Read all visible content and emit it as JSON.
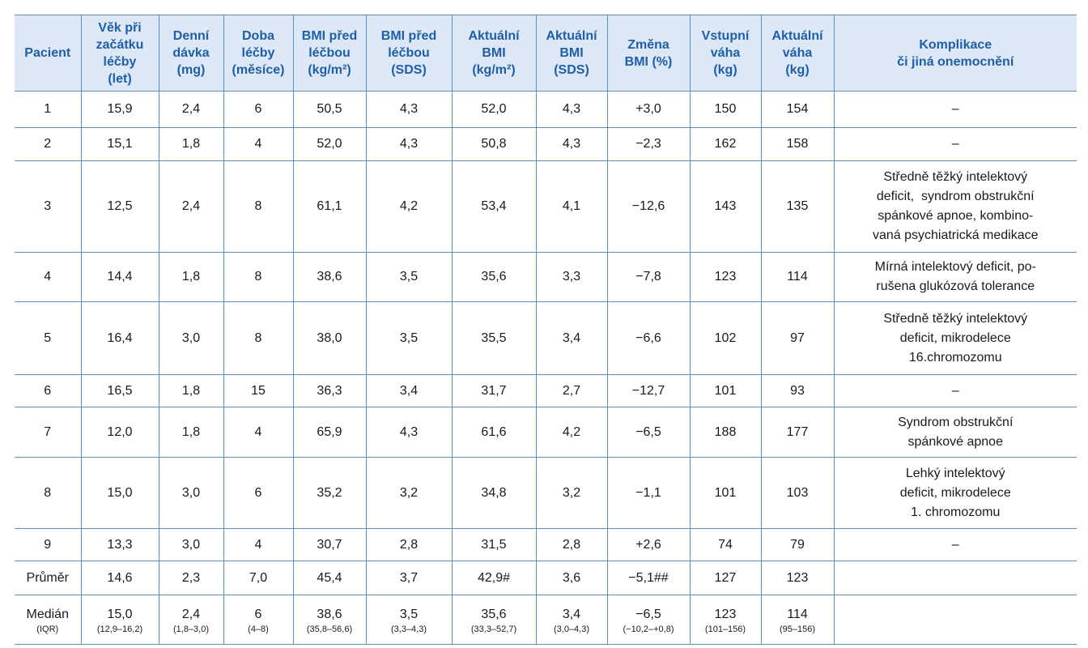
{
  "table": {
    "header": [
      [
        "Pacient"
      ],
      [
        "Věk při",
        "začátku",
        "léčby",
        "(let)"
      ],
      [
        "Denní",
        "dávka",
        "(mg)"
      ],
      [
        "Doba",
        "léčby",
        "(měsíce)"
      ],
      [
        "BMI před",
        "léčbou",
        "(kg/m²)"
      ],
      [
        "BMI před",
        "léčbou",
        "(SDS)"
      ],
      [
        "Aktuální",
        "BMI",
        "(kg/m²)"
      ],
      [
        "Aktuální",
        "BMI",
        "(SDS)"
      ],
      [
        "Změna",
        "BMI (%)"
      ],
      [
        "Vstupní",
        "váha",
        "(kg)"
      ],
      [
        "Aktuální",
        "váha",
        "(kg)"
      ],
      [
        "Komplikace",
        "či jiná onemocnění"
      ]
    ],
    "rows": [
      [
        [
          "1"
        ],
        [
          "15,9"
        ],
        [
          "2,4"
        ],
        [
          "6"
        ],
        [
          "50,5"
        ],
        [
          "4,3"
        ],
        [
          "52,0"
        ],
        [
          "4,3"
        ],
        [
          "+3,0"
        ],
        [
          "150"
        ],
        [
          "154"
        ],
        [
          "–"
        ]
      ],
      [
        [
          "2"
        ],
        [
          "15,1"
        ],
        [
          "1,8"
        ],
        [
          "4"
        ],
        [
          "52,0"
        ],
        [
          "4,3"
        ],
        [
          "50,8"
        ],
        [
          "4,3"
        ],
        [
          "−2,3"
        ],
        [
          "162"
        ],
        [
          "158"
        ],
        [
          "–"
        ]
      ],
      [
        [
          "3"
        ],
        [
          "12,5"
        ],
        [
          "2,4"
        ],
        [
          "8"
        ],
        [
          "61,1"
        ],
        [
          "4,2"
        ],
        [
          "53,4"
        ],
        [
          "4,1"
        ],
        [
          "−12,6"
        ],
        [
          "143"
        ],
        [
          "135"
        ],
        [
          "Středně těžký intelektový",
          "deficit,  syndrom obstrukční",
          "spánkové apnoe, kombino-",
          "vaná psychiatrická medikace"
        ]
      ],
      [
        [
          "4"
        ],
        [
          "14,4"
        ],
        [
          "1,8"
        ],
        [
          "8"
        ],
        [
          "38,6"
        ],
        [
          "3,5"
        ],
        [
          "35,6"
        ],
        [
          "3,3"
        ],
        [
          "−7,8"
        ],
        [
          "123"
        ],
        [
          "114"
        ],
        [
          "Mírná intelektový deficit, po-",
          "rušena glukózová tolerance"
        ]
      ],
      [
        [
          "5"
        ],
        [
          "16,4"
        ],
        [
          "3,0"
        ],
        [
          "8"
        ],
        [
          "38,0"
        ],
        [
          "3,5"
        ],
        [
          "35,5"
        ],
        [
          "3,4"
        ],
        [
          "−6,6"
        ],
        [
          "102"
        ],
        [
          "97"
        ],
        [
          "Středně těžký intelektový",
          "deficit, mikrodelece",
          "16.chromozomu"
        ]
      ],
      [
        [
          "6"
        ],
        [
          "16,5"
        ],
        [
          "1,8"
        ],
        [
          "15"
        ],
        [
          "36,3"
        ],
        [
          "3,4"
        ],
        [
          "31,7"
        ],
        [
          "2,7"
        ],
        [
          "−12,7"
        ],
        [
          "101"
        ],
        [
          "93"
        ],
        [
          "–"
        ]
      ],
      [
        [
          "7"
        ],
        [
          "12,0"
        ],
        [
          "1,8"
        ],
        [
          "4"
        ],
        [
          "65,9"
        ],
        [
          "4,3"
        ],
        [
          "61,6"
        ],
        [
          "4,2"
        ],
        [
          "−6,5"
        ],
        [
          "188"
        ],
        [
          "177"
        ],
        [
          "Syndrom obstrukční",
          "spánkové apnoe"
        ]
      ],
      [
        [
          "8"
        ],
        [
          "15,0"
        ],
        [
          "3,0"
        ],
        [
          "6"
        ],
        [
          "35,2"
        ],
        [
          "3,2"
        ],
        [
          "34,8"
        ],
        [
          "3,2"
        ],
        [
          "−1,1"
        ],
        [
          "101"
        ],
        [
          "103"
        ],
        [
          "Lehký intelektový",
          "deficit, mikrodelece",
          "1. chromozomu"
        ]
      ],
      [
        [
          "9"
        ],
        [
          "13,3"
        ],
        [
          "3,0"
        ],
        [
          "4"
        ],
        [
          "30,7"
        ],
        [
          "2,8"
        ],
        [
          "31,5"
        ],
        [
          "2,8"
        ],
        [
          "+2,6"
        ],
        [
          "74"
        ],
        [
          "79"
        ],
        [
          "–"
        ]
      ],
      [
        [
          "Průměr"
        ],
        [
          "14,6"
        ],
        [
          "2,3"
        ],
        [
          "7,0"
        ],
        [
          "45,4"
        ],
        [
          "3,7"
        ],
        [
          "42,9#"
        ],
        [
          "3,6"
        ],
        [
          "−5,1##"
        ],
        [
          "127"
        ],
        [
          "123"
        ],
        []
      ],
      [
        [
          "Medián",
          "(IQR)"
        ],
        [
          "15,0",
          "(12,9–16,2)"
        ],
        [
          "2,4",
          "(1,8–3,0)"
        ],
        [
          "6",
          "(4–8)"
        ],
        [
          "38,6",
          "(35,8–56,6)"
        ],
        [
          "3,5",
          "(3,3–4,3)"
        ],
        [
          "35,6",
          "(33,3–52,7)"
        ],
        [
          "3,4",
          "(3,0–4,3)"
        ],
        [
          "−6,5",
          "(−10,2–+0,8)"
        ],
        [
          "123",
          "(101–156)"
        ],
        [
          "114",
          "(95–156)"
        ],
        []
      ]
    ]
  }
}
